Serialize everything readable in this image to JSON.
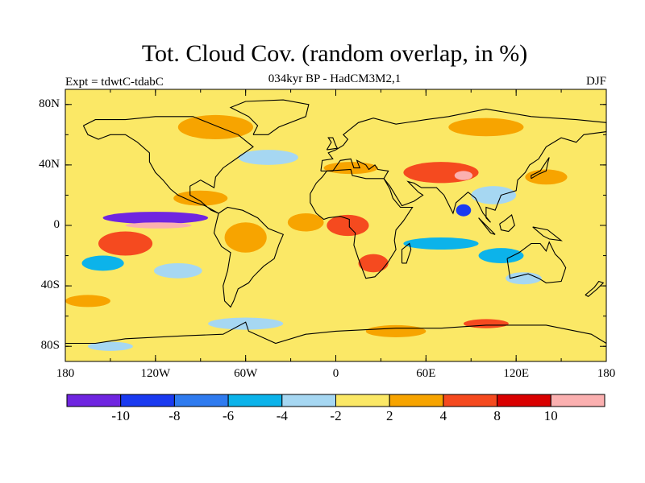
{
  "title": "Tot. Cloud Cov. (random overlap, in %)",
  "subtitle": "034kyr BP - HadCM3M2,1",
  "experiment_label": "Expt = tdwtC-tdabC",
  "season": "DJF",
  "map": {
    "lon_range": [
      -180,
      180
    ],
    "lat_range": [
      -90,
      90
    ],
    "lat_ticks": [
      {
        "value": 80,
        "label": "80N"
      },
      {
        "value": 40,
        "label": "40N"
      },
      {
        "value": 0,
        "label": "0"
      },
      {
        "value": -40,
        "label": "40S"
      },
      {
        "value": -80,
        "label": "80S"
      }
    ],
    "lon_ticks": [
      {
        "value": -180,
        "label": "180"
      },
      {
        "value": -120,
        "label": "120W"
      },
      {
        "value": -60,
        "label": "60W"
      },
      {
        "value": 0,
        "label": "0"
      },
      {
        "value": 60,
        "label": "60E"
      },
      {
        "value": 120,
        "label": "120E"
      },
      {
        "value": 180,
        "label": "180"
      }
    ],
    "background_color": "#fbe866",
    "anomaly_regions": [
      {
        "label": "east-pacific-strong-negative",
        "lon": -120,
        "lat": 5,
        "rx": 35,
        "ry": 4,
        "color": "#6f25e0"
      },
      {
        "label": "east-pacific-strong-positive",
        "lon": -118,
        "lat": 0,
        "rx": 22,
        "ry": 2,
        "color": "#fbb0b0"
      },
      {
        "label": "south-pacific-positive",
        "lon": -140,
        "lat": -12,
        "rx": 18,
        "ry": 8,
        "color": "#f54a1f"
      },
      {
        "label": "south-pacific-negative",
        "lon": -155,
        "lat": -25,
        "rx": 14,
        "ry": 5,
        "color": "#0cb3ea"
      },
      {
        "label": "southeast-pacific-negative",
        "lon": -105,
        "lat": -30,
        "rx": 16,
        "ry": 5,
        "color": "#a6d7f2"
      },
      {
        "label": "central-america-positive",
        "lon": -90,
        "lat": 18,
        "rx": 18,
        "ry": 5,
        "color": "#f7a400"
      },
      {
        "label": "north-atlantic-negative",
        "lon": -45,
        "lat": 45,
        "rx": 20,
        "ry": 5,
        "color": "#a6d7f2"
      },
      {
        "label": "amazon-positive",
        "lon": -60,
        "lat": -8,
        "rx": 14,
        "ry": 10,
        "color": "#f7a400"
      },
      {
        "label": "equatorial-atlantic-positive",
        "lon": -20,
        "lat": 2,
        "rx": 12,
        "ry": 6,
        "color": "#f7a400"
      },
      {
        "label": "west-africa-positive",
        "lon": 8,
        "lat": 0,
        "rx": 14,
        "ry": 7,
        "color": "#f54a1f"
      },
      {
        "label": "southern-africa-positive",
        "lon": 25,
        "lat": -25,
        "rx": 10,
        "ry": 6,
        "color": "#f54a1f"
      },
      {
        "label": "mediterranean-positive",
        "lon": 10,
        "lat": 38,
        "rx": 18,
        "ry": 4,
        "color": "#f7a400"
      },
      {
        "label": "central-asia-positive",
        "lon": 70,
        "lat": 35,
        "rx": 25,
        "ry": 7,
        "color": "#f54a1f"
      },
      {
        "label": "tibet-strong-positive",
        "lon": 85,
        "lat": 33,
        "rx": 6,
        "ry": 3,
        "color": "#fbb0b0"
      },
      {
        "label": "china-negative",
        "lon": 105,
        "lat": 20,
        "rx": 15,
        "ry": 6,
        "color": "#a6d7f2"
      },
      {
        "label": "bay-of-bengal-negative",
        "lon": 85,
        "lat": 10,
        "rx": 5,
        "ry": 4,
        "color": "#1a3af0"
      },
      {
        "label": "indian-ocean-negative",
        "lon": 70,
        "lat": -12,
        "rx": 25,
        "ry": 4,
        "color": "#0cb3ea"
      },
      {
        "label": "south-indian-ocean-negative",
        "lon": 110,
        "lat": -20,
        "rx": 15,
        "ry": 5,
        "color": "#0cb3ea"
      },
      {
        "label": "northwest-pacific-positive",
        "lon": 140,
        "lat": 32,
        "rx": 14,
        "ry": 5,
        "color": "#f7a400"
      },
      {
        "label": "arctic-positive",
        "lon": -80,
        "lat": 65,
        "rx": 25,
        "ry": 8,
        "color": "#f7a400"
      },
      {
        "label": "siberia-positive",
        "lon": 100,
        "lat": 65,
        "rx": 25,
        "ry": 6,
        "color": "#f7a400"
      },
      {
        "label": "southern-ocean-positive",
        "lon": 100,
        "lat": -65,
        "rx": 15,
        "ry": 3,
        "color": "#f54a1f"
      },
      {
        "label": "southern-ocean-negative-west",
        "lon": -60,
        "lat": -65,
        "rx": 25,
        "ry": 4,
        "color": "#a6d7f2"
      },
      {
        "label": "antarctic-coast-positive",
        "lon": 40,
        "lat": -70,
        "rx": 20,
        "ry": 4,
        "color": "#f7a400"
      },
      {
        "label": "far-southern-negative",
        "lon": -150,
        "lat": -80,
        "rx": 15,
        "ry": 3,
        "color": "#a6d7f2"
      },
      {
        "label": "western-australia-negative",
        "lon": 125,
        "lat": -35,
        "rx": 12,
        "ry": 4,
        "color": "#a6d7f2"
      },
      {
        "label": "southern-pacific-positive",
        "lon": -165,
        "lat": -50,
        "rx": 15,
        "ry": 4,
        "color": "#f7a400"
      }
    ]
  },
  "colorbar": {
    "colors": [
      "#6f25e0",
      "#1a3af0",
      "#2f7bef",
      "#0cb3ea",
      "#a6d7f2",
      "#fbe866",
      "#f7a400",
      "#f54a1f",
      "#d90000",
      "#fbb0b0"
    ],
    "labels": [
      "-10",
      "-8",
      "-6",
      "-4",
      "-2",
      "2",
      "4",
      "8",
      "10"
    ]
  }
}
